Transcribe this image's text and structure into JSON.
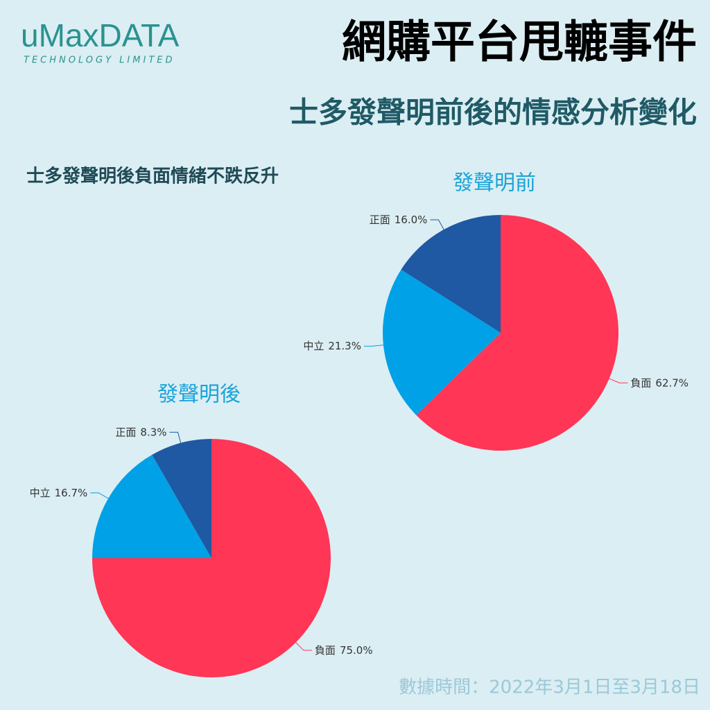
{
  "logo": {
    "name": "uMaxDATA",
    "tagline": "TECHNOLOGY LIMITED"
  },
  "title": "網購平台甩轆事件",
  "subtitle": "士多發聲明前後的情感分析變化",
  "caption": "士多發聲明後負面情緒不跌反升",
  "footer": "數據時間：2022年3月1日至3月18日",
  "chart_data": [
    {
      "type": "pie",
      "title": "發聲明前",
      "categories": [
        "負面",
        "中立",
        "正面"
      ],
      "values": [
        62.7,
        21.3,
        16.0
      ],
      "value_labels": [
        "62.7%",
        "21.3%",
        "16.0%"
      ],
      "colors": [
        "#ff3656",
        "#00a1e6",
        "#1f58a3"
      ]
    },
    {
      "type": "pie",
      "title": "發聲明後",
      "categories": [
        "負面",
        "中立",
        "正面"
      ],
      "values": [
        75.0,
        16.7,
        8.3
      ],
      "value_labels": [
        "75.0%",
        "16.7%",
        "8.3%"
      ],
      "colors": [
        "#ff3656",
        "#00a1e6",
        "#1f58a3"
      ]
    }
  ]
}
